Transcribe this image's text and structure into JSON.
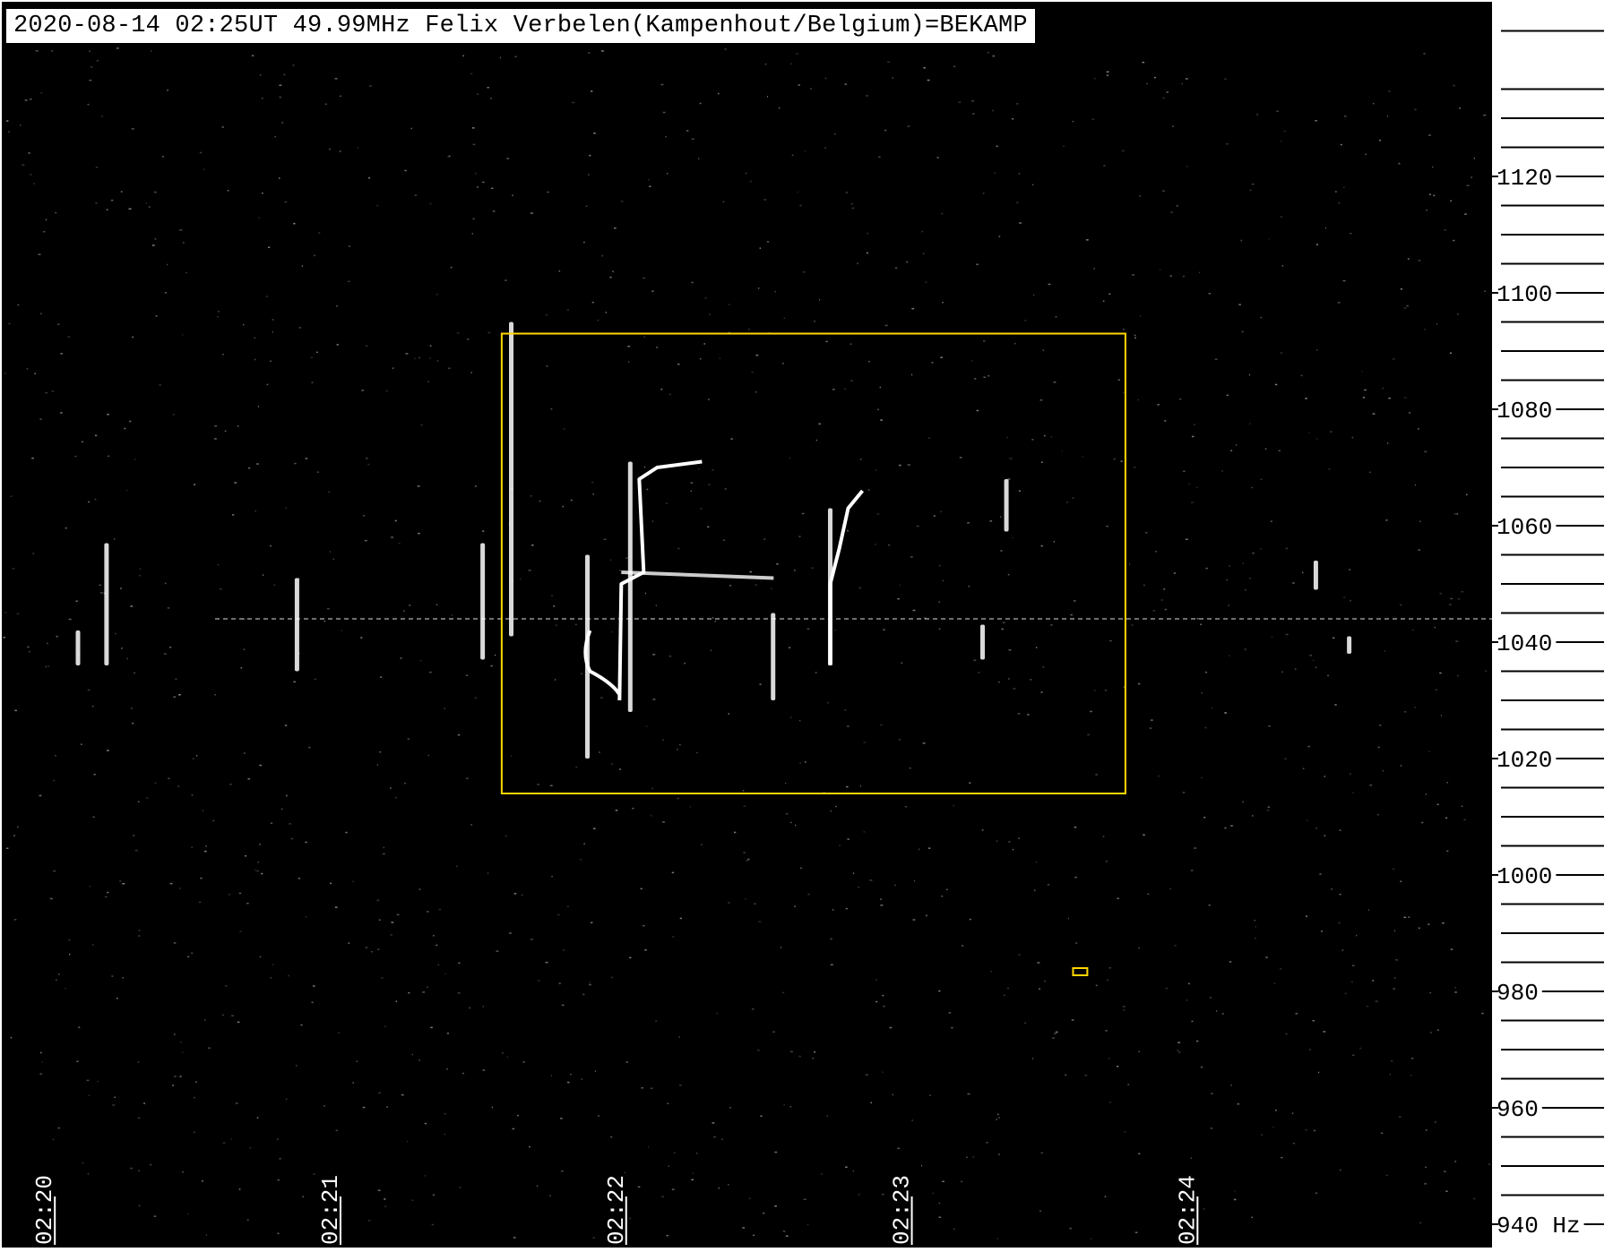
{
  "header": {
    "title": "2020-08-14 02:25UT 49.99MHz Felix Verbelen(Kampenhout/Belgium)=BEKAMP"
  },
  "colors": {
    "background": "#000000",
    "signal": "#ffffff",
    "marker": "#ffd700",
    "axis": "#000000"
  },
  "chart_data": {
    "type": "heatmap",
    "title": "2020-08-14 02:25UT 49.99MHz Felix Verbelen(Kampenhout/Belgium)=BEKAMP",
    "xlabel": "",
    "ylabel": "",
    "x_unit": "UT",
    "y_unit": "Hz",
    "xlim": [
      "02:19:53",
      "02:25:06"
    ],
    "ylim": [
      936,
      1150
    ],
    "x_ticks": [
      "02:20",
      "02:21",
      "02:22",
      "02:23",
      "02:24"
    ],
    "y_ticks": [
      940,
      960,
      980,
      1000,
      1020,
      1040,
      1060,
      1080,
      1100,
      1120
    ],
    "y_tick_labels": [
      "940 Hz",
      "960",
      "980",
      "1000",
      "1020",
      "1040",
      "1060",
      "1080",
      "1100",
      "1120"
    ],
    "carrier_hz": 1044,
    "grid": false,
    "annotations": [
      {
        "type": "box",
        "from": {
          "t": "02:21:38",
          "hz": 1093
        },
        "to": {
          "t": "02:23:49",
          "hz": 1014
        }
      },
      {
        "type": "box",
        "from": {
          "t": "02:23:38",
          "hz": 984
        },
        "to": {
          "t": "02:23:41",
          "hz": 983
        }
      }
    ],
    "echoes": [
      {
        "t": "02:20:15",
        "hz_low": 1036,
        "hz_high": 1057
      },
      {
        "t": "02:20:09",
        "hz_low": 1036,
        "hz_high": 1042
      },
      {
        "t": "02:20:55",
        "hz_low": 1035,
        "hz_high": 1051
      },
      {
        "t": "02:21:34",
        "hz_low": 1037,
        "hz_high": 1057
      },
      {
        "t": "02:21:40",
        "hz_low": 1041,
        "hz_high": 1095
      },
      {
        "t": "02:21:56",
        "hz_low": 1020,
        "hz_high": 1055
      },
      {
        "t": "02:22:05",
        "hz_low": 1028,
        "hz_high": 1071
      },
      {
        "t": "02:22:35",
        "hz_low": 1030,
        "hz_high": 1045
      },
      {
        "t": "02:22:47",
        "hz_low": 1036,
        "hz_high": 1063
      },
      {
        "t": "02:23:19",
        "hz_low": 1037,
        "hz_high": 1043
      },
      {
        "t": "02:23:24",
        "hz_low": 1059,
        "hz_high": 1068
      },
      {
        "t": "02:24:29",
        "hz_low": 1049,
        "hz_high": 1054
      },
      {
        "t": "02:24:36",
        "hz_low": 1038,
        "hz_high": 1041
      }
    ]
  }
}
